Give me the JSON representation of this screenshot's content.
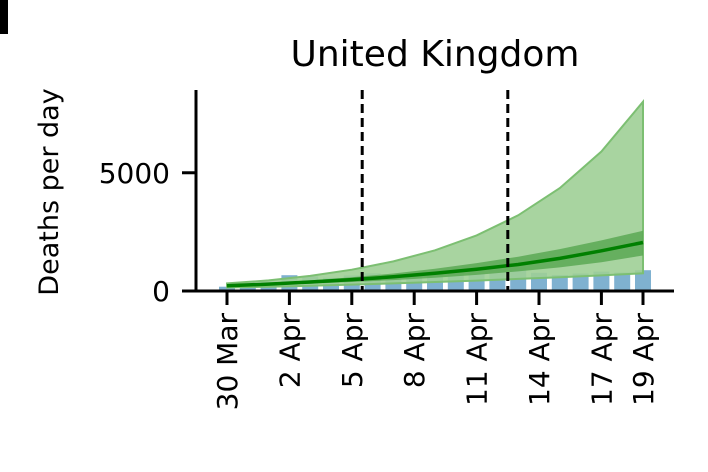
{
  "chart_data": {
    "type": "line",
    "title": "United Kingdom",
    "ylabel": "Deaths per day",
    "xlabel": "",
    "x_tick_labels": [
      "30 Mar",
      "2 Apr",
      "5 Apr",
      "8 Apr",
      "11 Apr",
      "14 Apr",
      "17 Apr",
      "19 Apr"
    ],
    "x_tick_days": [
      0,
      3,
      6,
      9,
      12,
      15,
      18,
      20
    ],
    "ylim": [
      0,
      8500
    ],
    "y_ticks": [
      0,
      5000
    ],
    "grid": false,
    "vlines_day": [
      6.5,
      13.5
    ],
    "reported_deaths": {
      "days": [
        0,
        1,
        2,
        3,
        4,
        5,
        6,
        7,
        8,
        9,
        10,
        11,
        12,
        13,
        14,
        15,
        16,
        17,
        18,
        19,
        20
      ],
      "values": [
        180,
        380,
        400,
        670,
        620,
        560,
        660,
        750,
        520,
        570,
        720,
        770,
        760,
        890,
        990,
        770,
        680,
        740,
        820,
        780,
        880
      ]
    },
    "series": [
      {
        "days": [
          0,
          2,
          4,
          6,
          8,
          10,
          12,
          14,
          16,
          18,
          20
        ],
        "median": [
          220,
          290,
          380,
          480,
          600,
          750,
          920,
          1120,
          1380,
          1700,
          2050
        ],
        "inner_band": {
          "low": [
            190,
            240,
            310,
            380,
            460,
            560,
            680,
            830,
            1000,
            1220,
            1500
          ],
          "high": [
            260,
            340,
            450,
            580,
            740,
            940,
            1180,
            1450,
            1770,
            2140,
            2550
          ]
        },
        "outer_band": {
          "low": [
            150,
            180,
            220,
            270,
            320,
            380,
            440,
            510,
            580,
            660,
            750
          ],
          "high": [
            320,
            450,
            640,
            900,
            1250,
            1720,
            2350,
            3200,
            4350,
            5900,
            8000
          ]
        }
      }
    ],
    "colors": {
      "outer_band": "#9fcf96",
      "inner_band": "#5aa853",
      "median_line": "#008000",
      "bars": "#5f9ec4",
      "vlines": "#000000",
      "axis": "#000000"
    }
  }
}
